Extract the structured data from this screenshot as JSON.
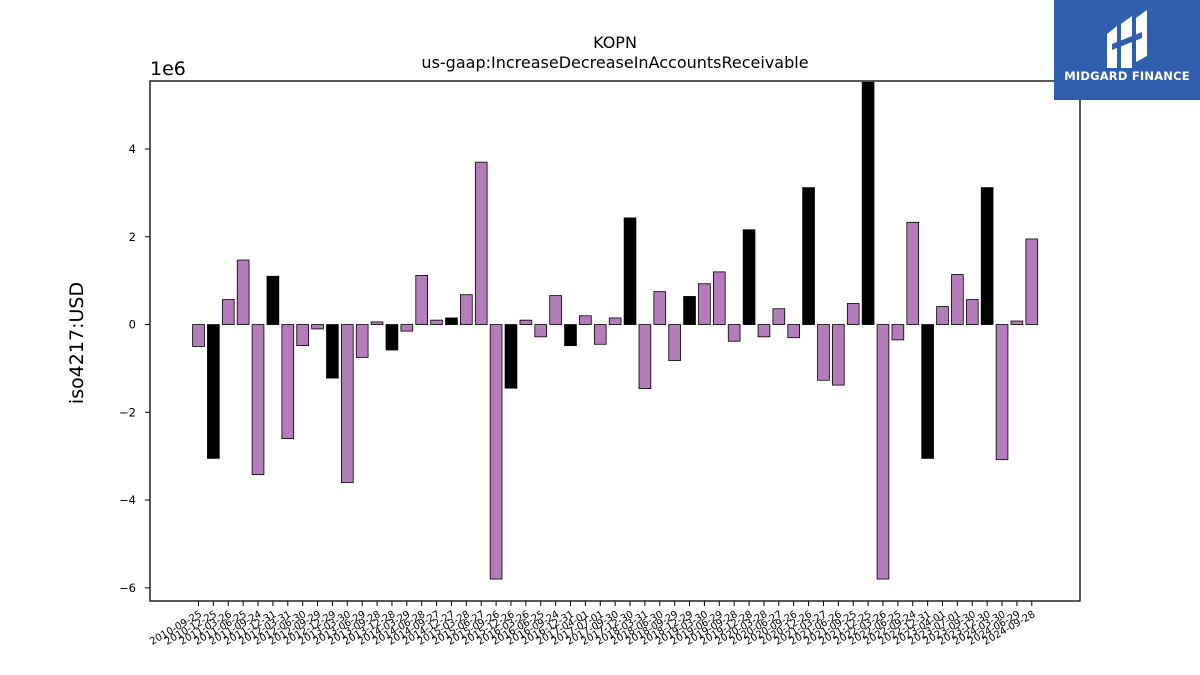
{
  "brand": {
    "name": "MIDGARD FINANCE",
    "logo_icon": "mf-logo-icon",
    "background_color": "#2f5fae"
  },
  "chart_data": {
    "type": "bar",
    "title": "KOPN",
    "subtitle": "us-gaap:IncreaseDecreaseInAccountsReceivable",
    "xlabel": "",
    "ylabel": "iso4217:USD",
    "y_scale_label": "1e6",
    "ylim": [
      -6.3,
      5.55
    ],
    "yticks": [
      -6,
      -4,
      -2,
      0,
      2,
      4
    ],
    "ytick_labels": [
      "−6",
      "−4",
      "−2",
      "0",
      "2",
      "4"
    ],
    "grid": false,
    "legend": "none",
    "colors": {
      "default": "#b57cbb",
      "highlight": "#000000",
      "edge": "#000000"
    },
    "categories": [
      "2010-09-25",
      "2010-12-25",
      "2011-03-26",
      "2011-06-25",
      "2011-09-24",
      "2011-12-31",
      "2012-03-31",
      "2012-06-30",
      "2012-09-29",
      "2012-12-29",
      "2013-03-30",
      "2013-06-29",
      "2013-09-28",
      "2013-12-28",
      "2014-03-29",
      "2014-06-28",
      "2014-09-27",
      "2014-12-27",
      "2015-03-28",
      "2015-06-27",
      "2015-09-26",
      "2015-12-26",
      "2016-03-26",
      "2016-06-25",
      "2016-09-24",
      "2016-12-31",
      "2017-04-01",
      "2017-07-01",
      "2017-09-30",
      "2017-12-30",
      "2018-03-31",
      "2018-06-30",
      "2018-09-29",
      "2018-12-29",
      "2019-03-30",
      "2019-06-29",
      "2019-09-28",
      "2019-12-28",
      "2020-03-28",
      "2020-06-27",
      "2020-09-26",
      "2020-12-26",
      "2021-03-27",
      "2021-06-26",
      "2021-09-25",
      "2021-12-25",
      "2022-03-26",
      "2022-06-25",
      "2022-09-24",
      "2022-12-31",
      "2023-04-01",
      "2023-07-01",
      "2023-09-30",
      "2023-12-30",
      "2024-03-30",
      "2024-06-29",
      "2024-09-28"
    ],
    "values": [
      -0.5,
      -3.05,
      0.57,
      1.47,
      -3.42,
      1.1,
      -2.6,
      -0.48,
      -0.1,
      -1.22,
      -3.6,
      -0.75,
      0.06,
      -0.58,
      -0.15,
      1.12,
      0.1,
      0.15,
      0.68,
      3.7,
      -5.8,
      -1.45,
      0.1,
      -0.28,
      0.66,
      -0.48,
      0.2,
      -0.45,
      0.15,
      2.43,
      -1.46,
      0.75,
      -0.82,
      0.64,
      0.93,
      1.2,
      -0.38,
      2.16,
      -0.28,
      0.36,
      -0.3,
      3.12,
      -1.27,
      -1.38,
      0.48,
      5.52,
      -5.8,
      -0.35,
      2.33,
      -3.05,
      0.41,
      1.14,
      0.57,
      3.12,
      -3.08,
      0.08,
      1.95
    ],
    "highlight": [
      false,
      true,
      false,
      false,
      false,
      true,
      false,
      false,
      false,
      true,
      false,
      false,
      false,
      true,
      false,
      false,
      false,
      true,
      false,
      false,
      false,
      true,
      false,
      false,
      false,
      true,
      false,
      false,
      false,
      true,
      false,
      false,
      false,
      true,
      false,
      false,
      false,
      true,
      false,
      false,
      false,
      true,
      false,
      false,
      false,
      true,
      false,
      false,
      false,
      true,
      false,
      false,
      false,
      true,
      false,
      false,
      false
    ]
  }
}
